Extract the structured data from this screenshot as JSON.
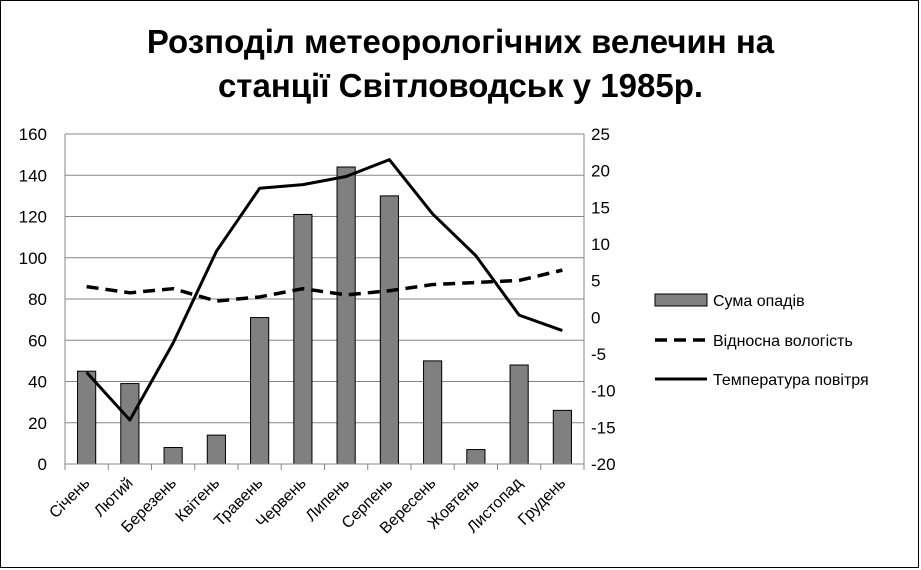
{
  "chart_data": {
    "type": "bar",
    "title_line1": "Розподіл метеорологічних велечин на",
    "title_line2": "станції Світловодськ у 1985р.",
    "categories": [
      "Січень",
      "Лютий",
      "Березень",
      "Квітень",
      "Травень",
      "Червень",
      "Липень",
      "Серпень",
      "Вересень",
      "Жовтень",
      "Листопад",
      "Грудень"
    ],
    "series": [
      {
        "name": "Сума опадів",
        "type": "bar",
        "axis": "left",
        "color": "#808080",
        "values": [
          45,
          39,
          8,
          14,
          71,
          121,
          144,
          130,
          50,
          7,
          48,
          26
        ]
      },
      {
        "name": "Відносна вологість",
        "type": "line",
        "axis": "left",
        "style": "dashed",
        "color": "#000000",
        "values": [
          86,
          83,
          85,
          79,
          81,
          85,
          82,
          84,
          87,
          88,
          89,
          94
        ]
      },
      {
        "name": "Температура повітря",
        "type": "line",
        "axis": "right",
        "style": "solid",
        "color": "#000000",
        "values": [
          -7.5,
          -14,
          -3.5,
          9,
          17.6,
          18.1,
          19.2,
          21.5,
          14.1,
          8.4,
          0.3,
          -1.8
        ]
      }
    ],
    "ylim_left": [
      0,
      160
    ],
    "yticks_left": [
      0,
      20,
      40,
      60,
      80,
      100,
      120,
      140,
      160
    ],
    "ylim_right": [
      -20,
      25
    ],
    "yticks_right": [
      -20,
      -15,
      -10,
      -5,
      0,
      5,
      10,
      15,
      20,
      25
    ],
    "grid": true,
    "legend_position": "right"
  }
}
